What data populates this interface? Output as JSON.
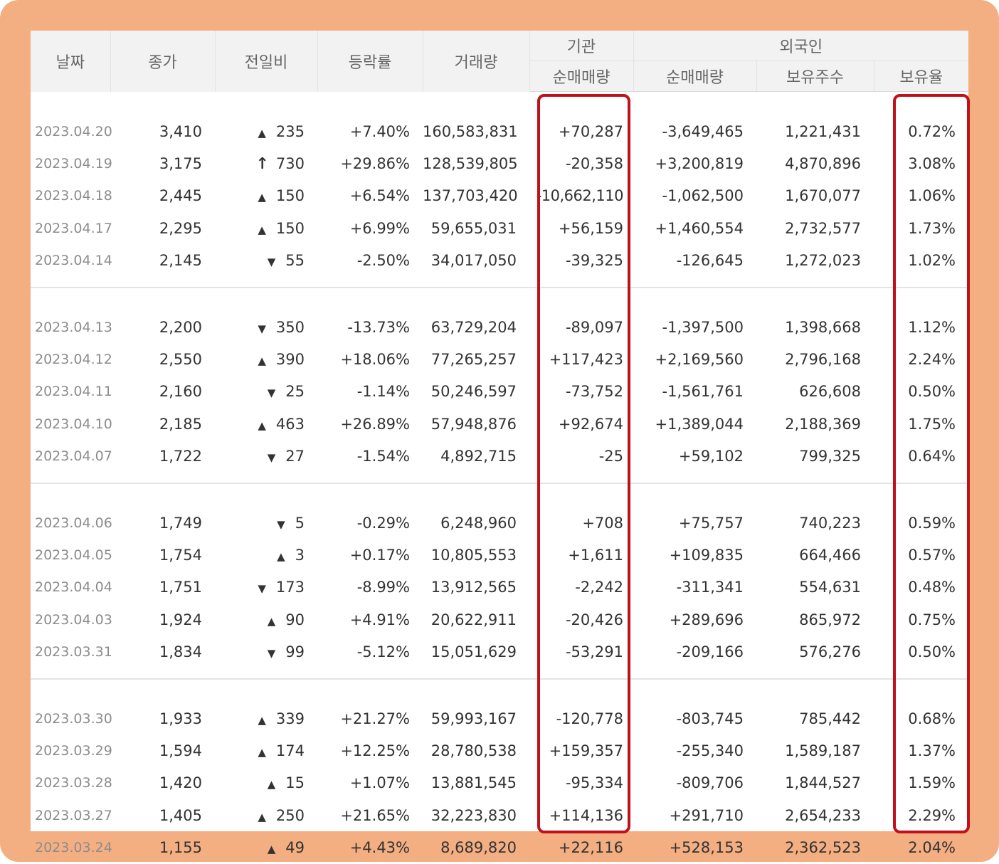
{
  "headers": {
    "date": "날짜",
    "close": "종가",
    "change": "전일비",
    "rate": "등락률",
    "volume": "거래량",
    "inst_group": "기관",
    "foreign_group": "외국인",
    "inst_net": "순매매량",
    "foreign_net": "순매매량",
    "foreign_shares": "보유주수",
    "foreign_ratio": "보유율"
  },
  "colors": {
    "frame": "#f3ae82",
    "up": "#e3131b",
    "down": "#1e6fd8",
    "highlight": "#c0101a"
  },
  "groups": [
    [
      {
        "date": "2023.04.20",
        "close": "3,410",
        "dir": "up",
        "change": "235",
        "rate": "+7.40%",
        "volume": "160,583,831",
        "inst": "+70,287",
        "foreign": "-3,649,465",
        "shares": "1,221,431",
        "ratio": "0.72%"
      },
      {
        "date": "2023.04.19",
        "close": "3,175",
        "dir": "upper",
        "change": "730",
        "rate": "+29.86%",
        "volume": "128,539,805",
        "inst": "-20,358",
        "foreign": "+3,200,819",
        "shares": "4,870,896",
        "ratio": "3.08%"
      },
      {
        "date": "2023.04.18",
        "close": "2,445",
        "dir": "up",
        "change": "150",
        "rate": "+6.54%",
        "volume": "137,703,420",
        "inst": "-10,662,110",
        "foreign": "-1,062,500",
        "shares": "1,670,077",
        "ratio": "1.06%"
      },
      {
        "date": "2023.04.17",
        "close": "2,295",
        "dir": "up",
        "change": "150",
        "rate": "+6.99%",
        "volume": "59,655,031",
        "inst": "+56,159",
        "foreign": "+1,460,554",
        "shares": "2,732,577",
        "ratio": "1.73%"
      },
      {
        "date": "2023.04.14",
        "close": "2,145",
        "dir": "down",
        "change": "55",
        "rate": "-2.50%",
        "volume": "34,017,050",
        "inst": "-39,325",
        "foreign": "-126,645",
        "shares": "1,272,023",
        "ratio": "1.02%"
      }
    ],
    [
      {
        "date": "2023.04.13",
        "close": "2,200",
        "dir": "down",
        "change": "350",
        "rate": "-13.73%",
        "volume": "63,729,204",
        "inst": "-89,097",
        "foreign": "-1,397,500",
        "shares": "1,398,668",
        "ratio": "1.12%"
      },
      {
        "date": "2023.04.12",
        "close": "2,550",
        "dir": "up",
        "change": "390",
        "rate": "+18.06%",
        "volume": "77,265,257",
        "inst": "+117,423",
        "foreign": "+2,169,560",
        "shares": "2,796,168",
        "ratio": "2.24%"
      },
      {
        "date": "2023.04.11",
        "close": "2,160",
        "dir": "down",
        "change": "25",
        "rate": "-1.14%",
        "volume": "50,246,597",
        "inst": "-73,752",
        "foreign": "-1,561,761",
        "shares": "626,608",
        "ratio": "0.50%"
      },
      {
        "date": "2023.04.10",
        "close": "2,185",
        "dir": "up",
        "change": "463",
        "rate": "+26.89%",
        "volume": "57,948,876",
        "inst": "+92,674",
        "foreign": "+1,389,044",
        "shares": "2,188,369",
        "ratio": "1.75%"
      },
      {
        "date": "2023.04.07",
        "close": "1,722",
        "dir": "down",
        "change": "27",
        "rate": "-1.54%",
        "volume": "4,892,715",
        "inst": "-25",
        "foreign": "+59,102",
        "shares": "799,325",
        "ratio": "0.64%"
      }
    ],
    [
      {
        "date": "2023.04.06",
        "close": "1,749",
        "dir": "down",
        "change": "5",
        "rate": "-0.29%",
        "volume": "6,248,960",
        "inst": "+708",
        "foreign": "+75,757",
        "shares": "740,223",
        "ratio": "0.59%"
      },
      {
        "date": "2023.04.05",
        "close": "1,754",
        "dir": "up",
        "change": "3",
        "rate": "+0.17%",
        "volume": "10,805,553",
        "inst": "+1,611",
        "foreign": "+109,835",
        "shares": "664,466",
        "ratio": "0.57%"
      },
      {
        "date": "2023.04.04",
        "close": "1,751",
        "dir": "down",
        "change": "173",
        "rate": "-8.99%",
        "volume": "13,912,565",
        "inst": "-2,242",
        "foreign": "-311,341",
        "shares": "554,631",
        "ratio": "0.48%"
      },
      {
        "date": "2023.04.03",
        "close": "1,924",
        "dir": "up",
        "change": "90",
        "rate": "+4.91%",
        "volume": "20,622,911",
        "inst": "-20,426",
        "foreign": "+289,696",
        "shares": "865,972",
        "ratio": "0.75%"
      },
      {
        "date": "2023.03.31",
        "close": "1,834",
        "dir": "down",
        "change": "99",
        "rate": "-5.12%",
        "volume": "15,051,629",
        "inst": "-53,291",
        "foreign": "-209,166",
        "shares": "576,276",
        "ratio": "0.50%"
      }
    ],
    [
      {
        "date": "2023.03.30",
        "close": "1,933",
        "dir": "up",
        "change": "339",
        "rate": "+21.27%",
        "volume": "59,993,167",
        "inst": "-120,778",
        "foreign": "-803,745",
        "shares": "785,442",
        "ratio": "0.68%"
      },
      {
        "date": "2023.03.29",
        "close": "1,594",
        "dir": "up",
        "change": "174",
        "rate": "+12.25%",
        "volume": "28,780,538",
        "inst": "+159,357",
        "foreign": "-255,340",
        "shares": "1,589,187",
        "ratio": "1.37%"
      },
      {
        "date": "2023.03.28",
        "close": "1,420",
        "dir": "up",
        "change": "15",
        "rate": "+1.07%",
        "volume": "13,881,545",
        "inst": "-95,334",
        "foreign": "-809,706",
        "shares": "1,844,527",
        "ratio": "1.59%"
      },
      {
        "date": "2023.03.27",
        "close": "1,405",
        "dir": "up",
        "change": "250",
        "rate": "+21.65%",
        "volume": "32,223,830",
        "inst": "+114,136",
        "foreign": "+291,710",
        "shares": "2,654,233",
        "ratio": "2.29%"
      },
      {
        "date": "2023.03.24",
        "close": "1,155",
        "dir": "up",
        "change": "49",
        "rate": "+4.43%",
        "volume": "8,689,820",
        "inst": "+22,116",
        "foreign": "+528,153",
        "shares": "2,362,523",
        "ratio": "2.04%"
      }
    ]
  ]
}
